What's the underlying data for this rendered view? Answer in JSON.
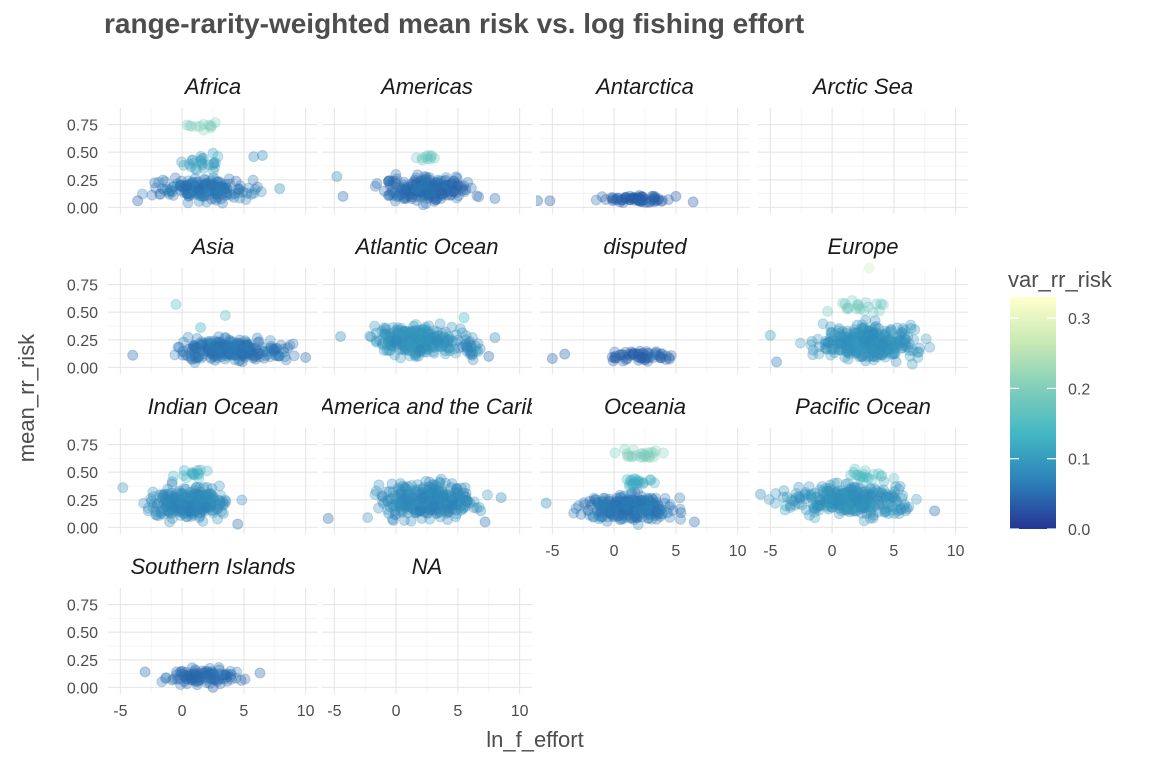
{
  "chart_data": {
    "type": "scatter",
    "title": "range-rarity-weighted mean risk vs. log fishing effort",
    "xlabel": "ln_f_effort",
    "ylabel": "mean_rr_risk",
    "xlim": [
      -6,
      11
    ],
    "ylim": [
      -0.06,
      0.9
    ],
    "x_ticks": [
      "-5",
      "0",
      "5",
      "10"
    ],
    "y_ticks": [
      "0.00",
      "0.25",
      "0.50",
      "0.75"
    ],
    "x_tick_values": [
      -5,
      0,
      5,
      10
    ],
    "y_tick_values": [
      0,
      0.25,
      0.5,
      0.75
    ],
    "grid": true,
    "legend": {
      "title": "var_rr_risk",
      "type": "continuous",
      "placement": "right",
      "ticks": [
        "0.0",
        "0.1",
        "0.2",
        "0.3"
      ],
      "tick_values": [
        0,
        0.1,
        0.2,
        0.3
      ],
      "range": [
        0,
        0.33
      ],
      "colors": [
        "#253494",
        "#2c7fb8",
        "#41b6c4",
        "#7fcdbb",
        "#c7e9b4",
        "#ffffcc"
      ]
    },
    "facets": [
      {
        "label": "Africa",
        "clusters": [
          {
            "x": [
              -3.5,
              7.5
            ],
            "y": [
              0.02,
              0.3
            ],
            "mean_var": 0.06,
            "n": 180
          },
          {
            "x": [
              -1,
              5
            ],
            "y": [
              0.3,
              0.5
            ],
            "mean_var": 0.1,
            "n": 25
          },
          {
            "x": [
              0,
              4
            ],
            "y": [
              0.68,
              0.78
            ],
            "mean_var": 0.2,
            "n": 12
          }
        ],
        "points": [
          {
            "x": -3.6,
            "y": 0.06,
            "v": 0.04
          },
          {
            "x": 7.9,
            "y": 0.17,
            "v": 0.08
          },
          {
            "x": 6.5,
            "y": 0.47,
            "v": 0.08
          },
          {
            "x": 5.8,
            "y": 0.46,
            "v": 0.08
          },
          {
            "x": 2.5,
            "y": 0.49,
            "v": 0.12
          }
        ]
      },
      {
        "label": "Americas",
        "clusters": [
          {
            "x": [
              -2.5,
              7.5
            ],
            "y": [
              0.0,
              0.32
            ],
            "mean_var": 0.05,
            "n": 220
          },
          {
            "x": [
              1,
              4
            ],
            "y": [
              0.42,
              0.48
            ],
            "mean_var": 0.17,
            "n": 10
          }
        ],
        "points": [
          {
            "x": -4.8,
            "y": 0.28,
            "v": 0.08
          },
          {
            "x": -4.3,
            "y": 0.1,
            "v": 0.05
          },
          {
            "x": 8.0,
            "y": 0.08,
            "v": 0.05
          }
        ]
      },
      {
        "label": "Antarctica",
        "clusters": [
          {
            "x": [
              -2,
              5
            ],
            "y": [
              0.03,
              0.13
            ],
            "mean_var": 0.04,
            "n": 70
          }
        ],
        "points": [
          {
            "x": -6.2,
            "y": 0.06,
            "v": 0.04
          },
          {
            "x": -5.2,
            "y": 0.06,
            "v": 0.04
          },
          {
            "x": 5.0,
            "y": 0.1,
            "v": 0.04
          },
          {
            "x": 6.4,
            "y": 0.05,
            "v": 0.04
          }
        ]
      },
      {
        "label": "Arctic Sea",
        "clusters": [],
        "points": []
      },
      {
        "label": "Asia",
        "clusters": [
          {
            "x": [
              -2,
              10
            ],
            "y": [
              0.02,
              0.3
            ],
            "mean_var": 0.06,
            "n": 260
          }
        ],
        "points": [
          {
            "x": -4,
            "y": 0.11,
            "v": 0.05
          },
          {
            "x": -0.5,
            "y": 0.57,
            "v": 0.15
          },
          {
            "x": 3.5,
            "y": 0.47,
            "v": 0.15
          },
          {
            "x": 1.5,
            "y": 0.36,
            "v": 0.12
          },
          {
            "x": 10.0,
            "y": 0.09,
            "v": 0.05
          }
        ]
      },
      {
        "label": "Atlantic Ocean",
        "clusters": [
          {
            "x": [
              -3,
              6.5
            ],
            "y": [
              0.05,
              0.42
            ],
            "mean_var": 0.09,
            "n": 280
          },
          {
            "x": -2.0,
            "y": [
              0.2,
              0.42
            ],
            "mean_var": 0.1,
            "n": 0
          },
          {
            "x": [
              5,
              7
            ],
            "y": [
              0.0,
              0.35
            ],
            "mean_var": 0.08,
            "n": 25
          }
        ],
        "points": [
          {
            "x": -4.5,
            "y": 0.28,
            "v": 0.08
          },
          {
            "x": 8,
            "y": 0.27,
            "v": 0.08
          },
          {
            "x": 7.5,
            "y": 0.1,
            "v": 0.05
          },
          {
            "x": 5.5,
            "y": 0.45,
            "v": 0.13
          }
        ]
      },
      {
        "label": "disputed",
        "clusters": [
          {
            "x": [
              -1.5,
              6.5
            ],
            "y": [
              0.03,
              0.18
            ],
            "mean_var": 0.04,
            "n": 60
          }
        ],
        "points": [
          {
            "x": -5.0,
            "y": 0.08,
            "v": 0.04
          },
          {
            "x": -4.0,
            "y": 0.12,
            "v": 0.04
          }
        ]
      },
      {
        "label": "Europe",
        "clusters": [
          {
            "x": [
              -3,
              8.5
            ],
            "y": [
              0.0,
              0.45
            ],
            "mean_var": 0.09,
            "n": 320
          },
          {
            "x": [
              -1,
              6
            ],
            "y": [
              0.45,
              0.65
            ],
            "mean_var": 0.18,
            "n": 20
          }
        ],
        "points": [
          {
            "x": -5,
            "y": 0.29,
            "v": 0.1
          },
          {
            "x": 3,
            "y": 0.9,
            "v": 0.28
          },
          {
            "x": -4.5,
            "y": 0.05,
            "v": 0.06
          }
        ]
      },
      {
        "label": "Indian Ocean",
        "clusters": [
          {
            "x": [
              -4,
              5
            ],
            "y": [
              0.02,
              0.42
            ],
            "mean_var": 0.08,
            "n": 260
          },
          {
            "x": [
              -1,
              3
            ],
            "y": [
              0.42,
              0.55
            ],
            "mean_var": 0.12,
            "n": 15
          }
        ],
        "points": [
          {
            "x": -4.8,
            "y": 0.36,
            "v": 0.1
          },
          {
            "x": 4.5,
            "y": 0.03,
            "v": 0.05
          }
        ]
      },
      {
        "label": "Latin America and the Caribbean",
        "clusters": [
          {
            "x": [
              -3,
              8
            ],
            "y": [
              0.0,
              0.48
            ],
            "mean_var": 0.08,
            "n": 300
          }
        ],
        "points": [
          {
            "x": -5.5,
            "y": 0.08,
            "v": 0.05
          },
          {
            "x": 8.5,
            "y": 0.27,
            "v": 0.08
          },
          {
            "x": 7.2,
            "y": 0.05,
            "v": 0.05
          }
        ]
      },
      {
        "label": "Oceania",
        "clusters": [
          {
            "x": [
              -4,
              6.5
            ],
            "y": [
              0.0,
              0.35
            ],
            "mean_var": 0.06,
            "n": 260
          },
          {
            "x": [
              -0.5,
              4.5
            ],
            "y": [
              0.6,
              0.72
            ],
            "mean_var": 0.2,
            "n": 25
          },
          {
            "x": [
              0,
              4
            ],
            "y": [
              0.35,
              0.48
            ],
            "mean_var": 0.12,
            "n": 20
          }
        ],
        "points": [
          {
            "x": -5.5,
            "y": 0.22,
            "v": 0.08
          },
          {
            "x": 6.5,
            "y": 0.05,
            "v": 0.05
          }
        ]
      },
      {
        "label": "Pacific Ocean",
        "clusters": [
          {
            "x": [
              -5.5,
              8
            ],
            "y": [
              0.05,
              0.45
            ],
            "mean_var": 0.09,
            "n": 320
          },
          {
            "x": [
              0,
              6
            ],
            "y": [
              0.4,
              0.55
            ],
            "mean_var": 0.15,
            "n": 20
          }
        ],
        "points": [
          {
            "x": -5.8,
            "y": 0.3,
            "v": 0.08
          },
          {
            "x": 8.3,
            "y": 0.15,
            "v": 0.05
          }
        ]
      },
      {
        "label": "Southern Islands",
        "clusters": [
          {
            "x": [
              -3,
              6.5
            ],
            "y": [
              0.0,
              0.2
            ],
            "mean_var": 0.05,
            "n": 100
          }
        ],
        "points": [
          {
            "x": -3.0,
            "y": 0.14,
            "v": 0.05
          },
          {
            "x": 6.3,
            "y": 0.13,
            "v": 0.05
          },
          {
            "x": 2.5,
            "y": 0.0,
            "v": 0.04
          }
        ]
      },
      {
        "label": "NA",
        "clusters": [],
        "points": []
      }
    ]
  }
}
